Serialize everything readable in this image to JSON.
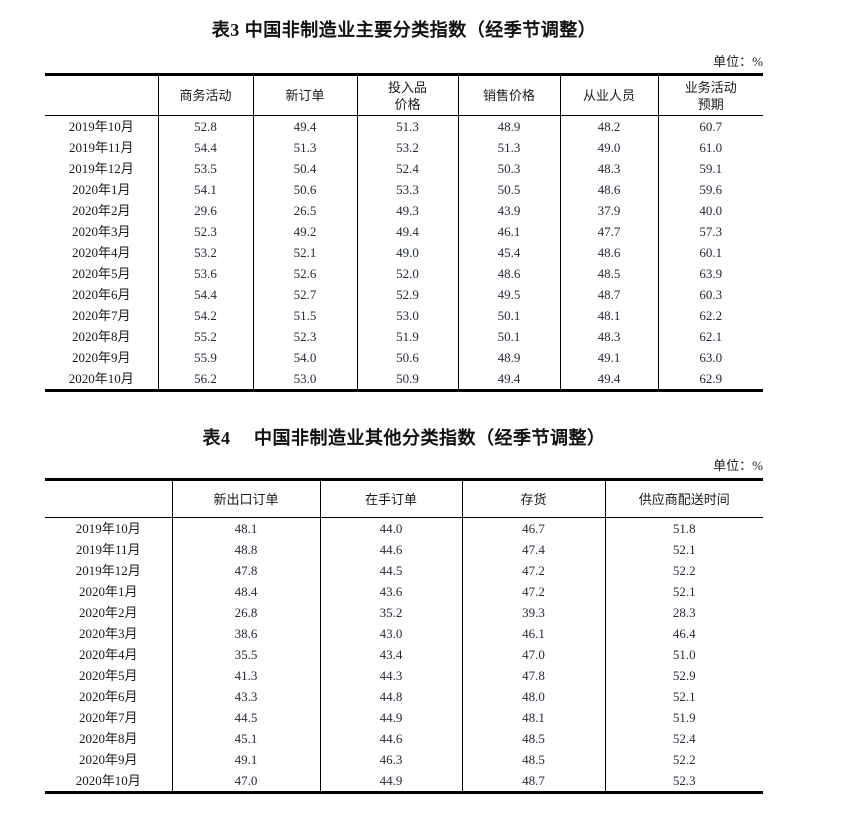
{
  "page": {
    "background_color": "#ffffff",
    "text_color": "#1a1a1a",
    "border_color": "#000000"
  },
  "table3": {
    "title": "表3 中国非制造业主要分类指数（经季节调整）",
    "unit_label": "单位：%",
    "columns": [
      "商务活动",
      "新订单",
      "投入品\n价格",
      "销售价格",
      "从业人员",
      "业务活动\n预期"
    ],
    "rows": [
      {
        "period": "2019年10月",
        "values": [
          "52.8",
          "49.4",
          "51.3",
          "48.9",
          "48.2",
          "60.7"
        ]
      },
      {
        "period": "2019年11月",
        "values": [
          "54.4",
          "51.3",
          "53.2",
          "51.3",
          "49.0",
          "61.0"
        ]
      },
      {
        "period": "2019年12月",
        "values": [
          "53.5",
          "50.4",
          "52.4",
          "50.3",
          "48.3",
          "59.1"
        ]
      },
      {
        "period": "2020年1月",
        "values": [
          "54.1",
          "50.6",
          "53.3",
          "50.5",
          "48.6",
          "59.6"
        ]
      },
      {
        "period": "2020年2月",
        "values": [
          "29.6",
          "26.5",
          "49.3",
          "43.9",
          "37.9",
          "40.0"
        ]
      },
      {
        "period": "2020年3月",
        "values": [
          "52.3",
          "49.2",
          "49.4",
          "46.1",
          "47.7",
          "57.3"
        ]
      },
      {
        "period": "2020年4月",
        "values": [
          "53.2",
          "52.1",
          "49.0",
          "45.4",
          "48.6",
          "60.1"
        ]
      },
      {
        "period": "2020年5月",
        "values": [
          "53.6",
          "52.6",
          "52.0",
          "48.6",
          "48.5",
          "63.9"
        ]
      },
      {
        "period": "2020年6月",
        "values": [
          "54.4",
          "52.7",
          "52.9",
          "49.5",
          "48.7",
          "60.3"
        ]
      },
      {
        "period": "2020年7月",
        "values": [
          "54.2",
          "51.5",
          "53.0",
          "50.1",
          "48.1",
          "62.2"
        ]
      },
      {
        "period": "2020年8月",
        "values": [
          "55.2",
          "52.3",
          "51.9",
          "50.1",
          "48.3",
          "62.1"
        ]
      },
      {
        "period": "2020年9月",
        "values": [
          "55.9",
          "54.0",
          "50.6",
          "48.9",
          "49.1",
          "63.0"
        ]
      },
      {
        "period": "2020年10月",
        "values": [
          "56.2",
          "53.0",
          "50.9",
          "49.4",
          "49.4",
          "62.9"
        ]
      }
    ]
  },
  "table4": {
    "title": "表4　 中国非制造业其他分类指数（经季节调整）",
    "unit_label": "单位：%",
    "columns": [
      "新出口订单",
      "在手订单",
      "存货",
      "供应商配送时间"
    ],
    "rows": [
      {
        "period": "2019年10月",
        "values": [
          "48.1",
          "44.0",
          "46.7",
          "51.8"
        ]
      },
      {
        "period": "2019年11月",
        "values": [
          "48.8",
          "44.6",
          "47.4",
          "52.1"
        ]
      },
      {
        "period": "2019年12月",
        "values": [
          "47.8",
          "44.5",
          "47.2",
          "52.2"
        ]
      },
      {
        "period": "2020年1月",
        "values": [
          "48.4",
          "43.6",
          "47.2",
          "52.1"
        ]
      },
      {
        "period": "2020年2月",
        "values": [
          "26.8",
          "35.2",
          "39.3",
          "28.3"
        ]
      },
      {
        "period": "2020年3月",
        "values": [
          "38.6",
          "43.0",
          "46.1",
          "46.4"
        ]
      },
      {
        "period": "2020年4月",
        "values": [
          "35.5",
          "43.4",
          "47.0",
          "51.0"
        ]
      },
      {
        "period": "2020年5月",
        "values": [
          "41.3",
          "44.3",
          "47.8",
          "52.9"
        ]
      },
      {
        "period": "2020年6月",
        "values": [
          "43.3",
          "44.8",
          "48.0",
          "52.1"
        ]
      },
      {
        "period": "2020年7月",
        "values": [
          "44.5",
          "44.9",
          "48.1",
          "51.9"
        ]
      },
      {
        "period": "2020年8月",
        "values": [
          "45.1",
          "44.6",
          "48.5",
          "52.4"
        ]
      },
      {
        "period": "2020年9月",
        "values": [
          "49.1",
          "46.3",
          "48.5",
          "52.2"
        ]
      },
      {
        "period": "2020年10月",
        "values": [
          "47.0",
          "44.9",
          "48.7",
          "52.3"
        ]
      }
    ]
  }
}
